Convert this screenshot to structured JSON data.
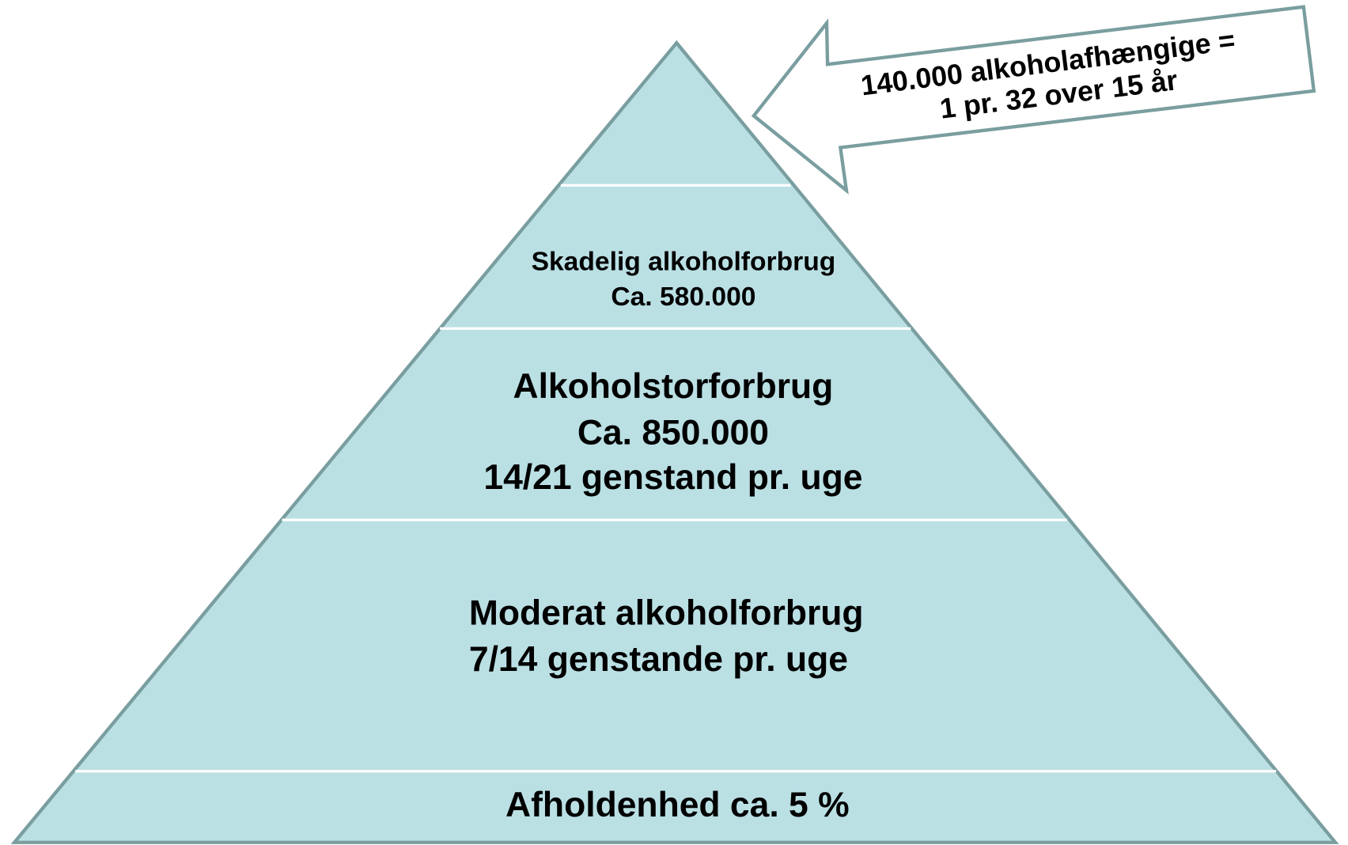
{
  "levels": [
    {
      "lines": [
        "Skadelig alkoholforbrug",
        "Ca. 580.000"
      ]
    },
    {
      "lines": [
        "Alkoholstorforbrug",
        "Ca. 850.000",
        "14/21 genstand pr. uge"
      ]
    },
    {
      "lines": [
        "Moderat alkoholforbrug",
        "7/14 genstande pr. uge"
      ]
    },
    {
      "lines": [
        "Afholdenhed ca. 5 %"
      ]
    }
  ],
  "callout": {
    "lines": [
      "140.000 alkoholafhængige =",
      "1 pr. 32 over 15 år"
    ]
  }
}
